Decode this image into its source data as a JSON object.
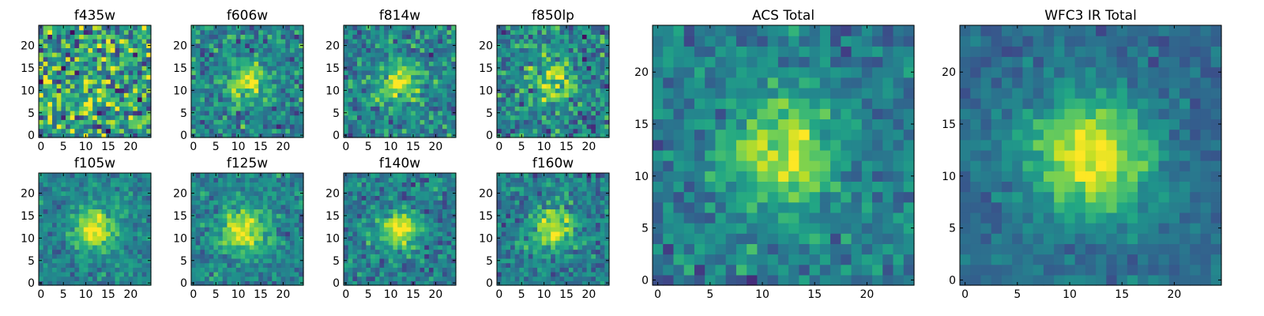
{
  "chart_data": [
    {
      "type": "heatmap",
      "title": "f435w",
      "seed": 11,
      "peak": 0.1,
      "sigma": 4.0,
      "noise": 0.55,
      "base": 0.55,
      "center": [
        12,
        12
      ],
      "xlim": [
        0,
        24
      ],
      "ylim": [
        0,
        24
      ],
      "xticks": [
        0,
        5,
        10,
        15,
        20
      ],
      "yticks": [
        0,
        5,
        10,
        15,
        20
      ],
      "colormap": "viridis"
    },
    {
      "type": "heatmap",
      "title": "f606w",
      "seed": 23,
      "peak": 0.45,
      "sigma": 3.0,
      "noise": 0.3,
      "base": 0.45,
      "center": [
        12,
        12
      ],
      "xlim": [
        0,
        24
      ],
      "ylim": [
        0,
        24
      ],
      "xticks": [
        0,
        5,
        10,
        15,
        20
      ],
      "yticks": [
        0,
        5,
        10,
        15,
        20
      ],
      "colormap": "viridis"
    },
    {
      "type": "heatmap",
      "title": "f814w",
      "seed": 37,
      "peak": 0.45,
      "sigma": 3.2,
      "noise": 0.3,
      "base": 0.45,
      "center": [
        12,
        12
      ],
      "xlim": [
        0,
        24
      ],
      "ylim": [
        0,
        24
      ],
      "xticks": [
        0,
        5,
        10,
        15,
        20
      ],
      "yticks": [
        0,
        5,
        10,
        15,
        20
      ],
      "colormap": "viridis"
    },
    {
      "type": "heatmap",
      "title": "f850lp",
      "seed": 41,
      "peak": 0.4,
      "sigma": 3.2,
      "noise": 0.34,
      "base": 0.45,
      "center": [
        12,
        12
      ],
      "xlim": [
        0,
        24
      ],
      "ylim": [
        0,
        24
      ],
      "xticks": [
        0,
        5,
        10,
        15,
        20
      ],
      "yticks": [
        0,
        5,
        10,
        15,
        20
      ],
      "colormap": "viridis"
    },
    {
      "type": "heatmap",
      "title": "f105w",
      "seed": 53,
      "peak": 0.6,
      "sigma": 3.0,
      "noise": 0.2,
      "base": 0.45,
      "center": [
        12,
        12
      ],
      "xlim": [
        0,
        24
      ],
      "ylim": [
        0,
        24
      ],
      "xticks": [
        0,
        5,
        10,
        15,
        20
      ],
      "yticks": [
        0,
        5,
        10,
        15,
        20
      ],
      "colormap": "viridis"
    },
    {
      "type": "heatmap",
      "title": "f125w",
      "seed": 67,
      "peak": 0.55,
      "sigma": 3.5,
      "noise": 0.22,
      "base": 0.45,
      "center": [
        11,
        12
      ],
      "xlim": [
        0,
        24
      ],
      "ylim": [
        0,
        24
      ],
      "xticks": [
        0,
        5,
        10,
        15,
        20
      ],
      "yticks": [
        0,
        5,
        10,
        15,
        20
      ],
      "colormap": "viridis"
    },
    {
      "type": "heatmap",
      "title": "f140w",
      "seed": 71,
      "peak": 0.55,
      "sigma": 3.0,
      "noise": 0.25,
      "base": 0.42,
      "center": [
        12,
        12
      ],
      "xlim": [
        0,
        24
      ],
      "ylim": [
        0,
        24
      ],
      "xticks": [
        0,
        5,
        10,
        15,
        20
      ],
      "yticks": [
        0,
        5,
        10,
        15,
        20
      ],
      "colormap": "viridis"
    },
    {
      "type": "heatmap",
      "title": "f160w",
      "seed": 89,
      "peak": 0.55,
      "sigma": 3.2,
      "noise": 0.25,
      "base": 0.42,
      "center": [
        12,
        12
      ],
      "xlim": [
        0,
        24
      ],
      "ylim": [
        0,
        24
      ],
      "xticks": [
        0,
        5,
        10,
        15,
        20
      ],
      "yticks": [
        0,
        5,
        10,
        15,
        20
      ],
      "colormap": "viridis"
    },
    {
      "type": "heatmap",
      "title": "ACS Total",
      "seed": 97,
      "peak": 0.5,
      "sigma": 3.5,
      "noise": 0.22,
      "base": 0.42,
      "center": [
        12,
        12
      ],
      "xlim": [
        0,
        24
      ],
      "ylim": [
        0,
        24
      ],
      "xticks": [
        0,
        5,
        10,
        15,
        20
      ],
      "yticks": [
        0,
        5,
        10,
        15,
        20
      ],
      "colormap": "viridis"
    },
    {
      "type": "heatmap",
      "title": "WFC3 IR Total",
      "seed": 103,
      "peak": 0.65,
      "sigma": 4.0,
      "noise": 0.14,
      "base": 0.35,
      "center": [
        12,
        12
      ],
      "xlim": [
        0,
        24
      ],
      "ylim": [
        0,
        24
      ],
      "xticks": [
        0,
        5,
        10,
        15,
        20
      ],
      "yticks": [
        0,
        5,
        10,
        15,
        20
      ],
      "colormap": "viridis"
    }
  ]
}
